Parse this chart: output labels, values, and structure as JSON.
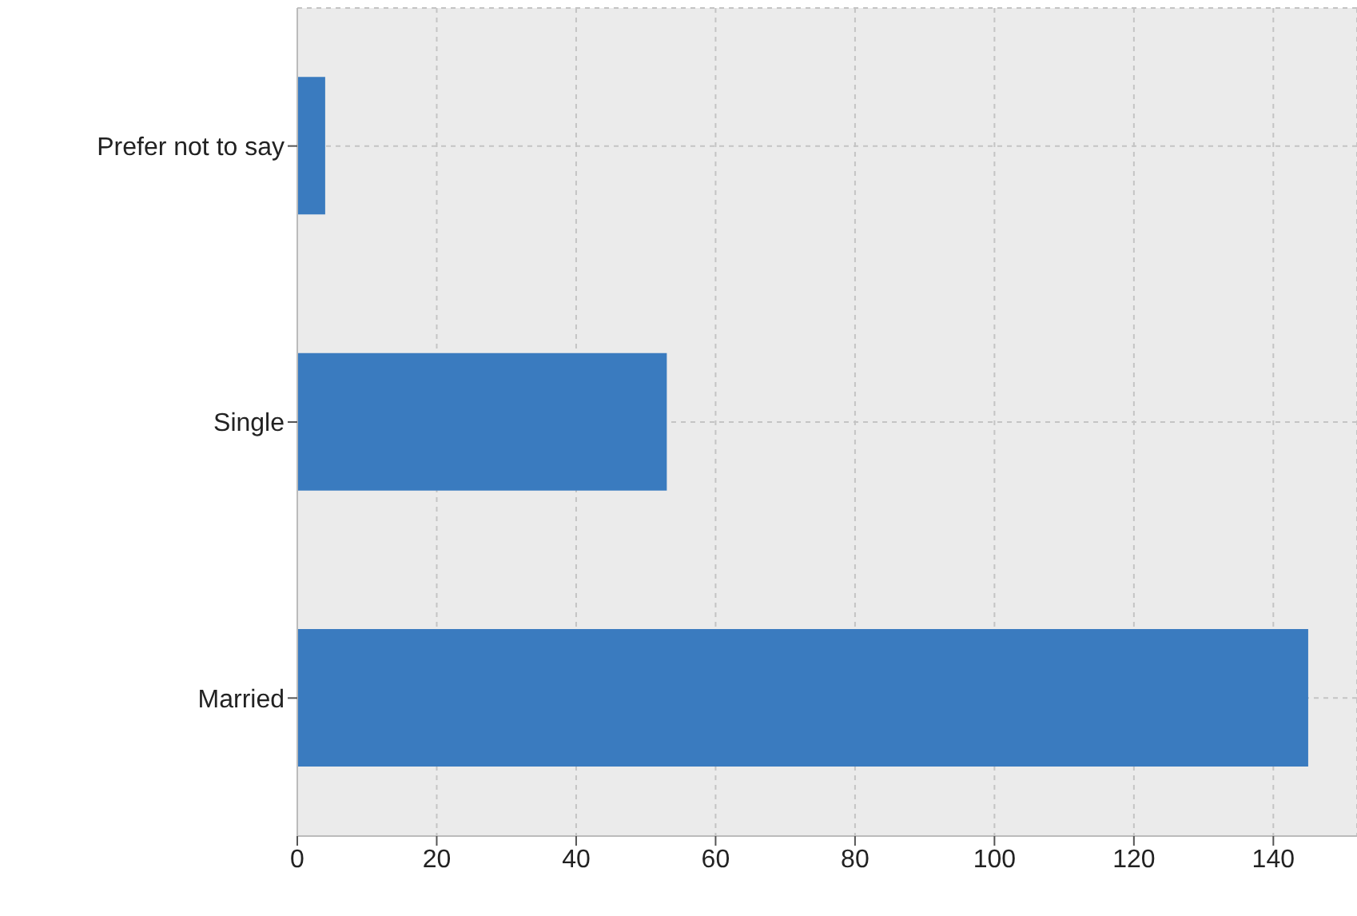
{
  "chart_data": {
    "type": "bar",
    "orientation": "horizontal",
    "categories": [
      "Prefer not to say",
      "Single",
      "Married"
    ],
    "values": [
      4,
      53,
      145
    ],
    "color": "#3a7bbf",
    "xlim": [
      0,
      152
    ],
    "xticks": [
      0,
      20,
      40,
      60,
      80,
      100,
      120,
      140
    ],
    "grid": true,
    "legend": false
  }
}
